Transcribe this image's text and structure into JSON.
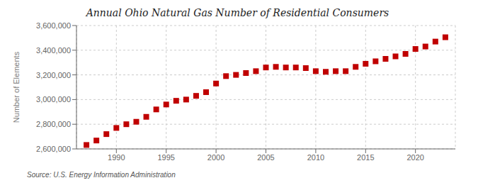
{
  "chart_data": {
    "type": "scatter",
    "title": "Annual Ohio Natural Gas Number of Residential Consumers",
    "ylabel": "Number of Elements",
    "annotation": "Source: U.S. Energy Information Administration",
    "x": [
      1987,
      1988,
      1989,
      1990,
      1991,
      1992,
      1993,
      1994,
      1995,
      1996,
      1997,
      1998,
      1999,
      2000,
      2001,
      2002,
      2003,
      2004,
      2005,
      2006,
      2007,
      2008,
      2009,
      2010,
      2011,
      2012,
      2013,
      2014,
      2015,
      2016,
      2017,
      2018,
      2019,
      2020,
      2021,
      2022,
      2023
    ],
    "values": [
      2632000,
      2668000,
      2720000,
      2770000,
      2800000,
      2820000,
      2860000,
      2920000,
      2960000,
      2990000,
      3000000,
      3030000,
      3060000,
      3130000,
      3190000,
      3200000,
      3215000,
      3230000,
      3260000,
      3265000,
      3260000,
      3260000,
      3255000,
      3230000,
      3225000,
      3230000,
      3230000,
      3265000,
      3290000,
      3310000,
      3330000,
      3350000,
      3370000,
      3410000,
      3430000,
      3470000,
      3505000
    ],
    "color": "#c00000",
    "marker": "square",
    "xlim": [
      1986,
      2024
    ],
    "xticks": [
      1990,
      1995,
      2000,
      2005,
      2010,
      2015,
      2020
    ],
    "ylim": [
      2600000,
      3600000
    ],
    "yticks": [
      {
        "value": 2600000,
        "label": "2,600,000"
      },
      {
        "value": 2800000,
        "label": "2,800,000"
      },
      {
        "value": 3000000,
        "label": "3,000,000"
      },
      {
        "value": 3200000,
        "label": "3,200,000"
      },
      {
        "value": 3400000,
        "label": "3,400,000"
      },
      {
        "value": 3600000,
        "label": "3,600,000"
      }
    ],
    "grid": true
  }
}
